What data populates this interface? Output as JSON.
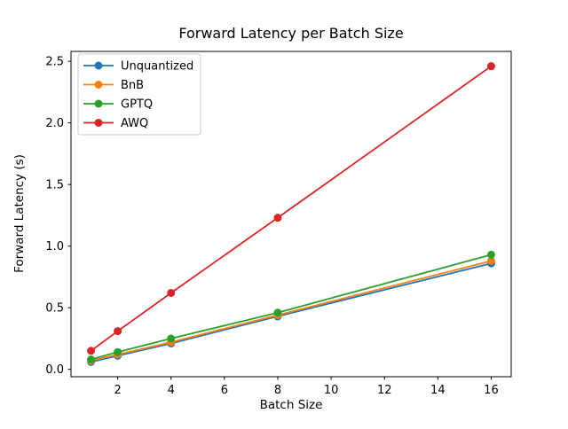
{
  "figure": {
    "background": "#ffffff",
    "frame_color": "#000000",
    "legend_border_color": "#cccccc"
  },
  "chart_data": {
    "type": "line",
    "title": "Forward Latency per Batch Size",
    "xlabel": "Batch Size",
    "ylabel": "Forward Latency (s)",
    "x": [
      1,
      2,
      4,
      8,
      16
    ],
    "series": [
      {
        "name": "Unquantized",
        "color": "#1f77b4",
        "values": [
          0.06,
          0.11,
          0.21,
          0.43,
          0.86
        ]
      },
      {
        "name": "BnB",
        "color": "#ff7f0e",
        "values": [
          0.07,
          0.12,
          0.22,
          0.44,
          0.88
        ]
      },
      {
        "name": "GPTQ",
        "color": "#2ca02c",
        "values": [
          0.08,
          0.14,
          0.25,
          0.46,
          0.93
        ]
      },
      {
        "name": "AWQ",
        "color": "#d62728",
        "values": [
          0.15,
          0.31,
          0.62,
          1.23,
          2.46
        ]
      }
    ],
    "xlim": [
      0.25,
      16.75
    ],
    "ylim": [
      -0.06,
      2.58
    ],
    "xticks": [
      2,
      4,
      6,
      8,
      10,
      12,
      14,
      16
    ],
    "xtick_labels": [
      "2",
      "4",
      "6",
      "8",
      "10",
      "12",
      "14",
      "16"
    ],
    "yticks": [
      0.0,
      0.5,
      1.0,
      1.5,
      2.0,
      2.5
    ],
    "ytick_labels": [
      "0.0",
      "0.5",
      "1.0",
      "1.5",
      "2.0",
      "2.5"
    ],
    "grid": false,
    "marker": "circle",
    "legend": {
      "position": "upper left",
      "labels": [
        "Unquantized",
        "BnB",
        "GPTQ",
        "AWQ"
      ]
    }
  }
}
